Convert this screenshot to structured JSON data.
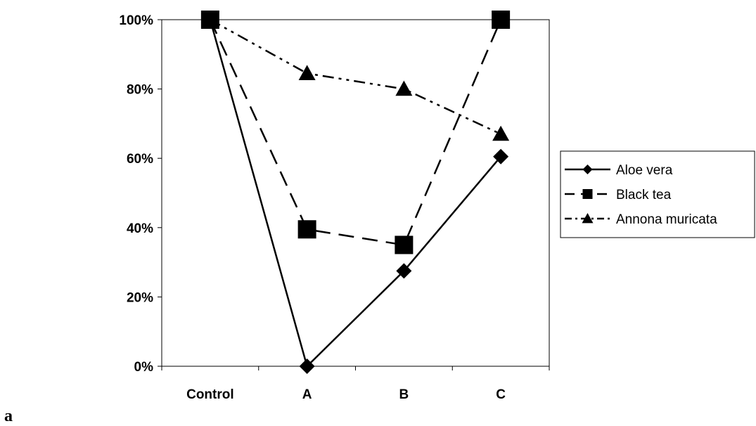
{
  "panel_label": "a",
  "chart_data": {
    "type": "line",
    "categories": [
      "Control",
      "A",
      "B",
      "C"
    ],
    "ylim": [
      0,
      100
    ],
    "yticks": [
      0,
      20,
      40,
      60,
      80,
      100
    ],
    "ytick_labels": [
      "0%",
      "20%",
      "40%",
      "60%",
      "80%",
      "100%"
    ],
    "grid": false,
    "legend_position": "right",
    "series": [
      {
        "name": "Aloe vera",
        "values": [
          100,
          0,
          27.5,
          60.5
        ],
        "marker": "diamond",
        "line_style": "solid",
        "color": "#000000"
      },
      {
        "name": "Black tea",
        "values": [
          100,
          39.5,
          35,
          100
        ],
        "marker": "square",
        "line_style": "dashed",
        "color": "#000000"
      },
      {
        "name": "Annona muricata",
        "values": [
          100,
          84.5,
          80,
          67
        ],
        "marker": "triangle",
        "line_style": "dash-dot-dot",
        "color": "#000000"
      }
    ]
  }
}
